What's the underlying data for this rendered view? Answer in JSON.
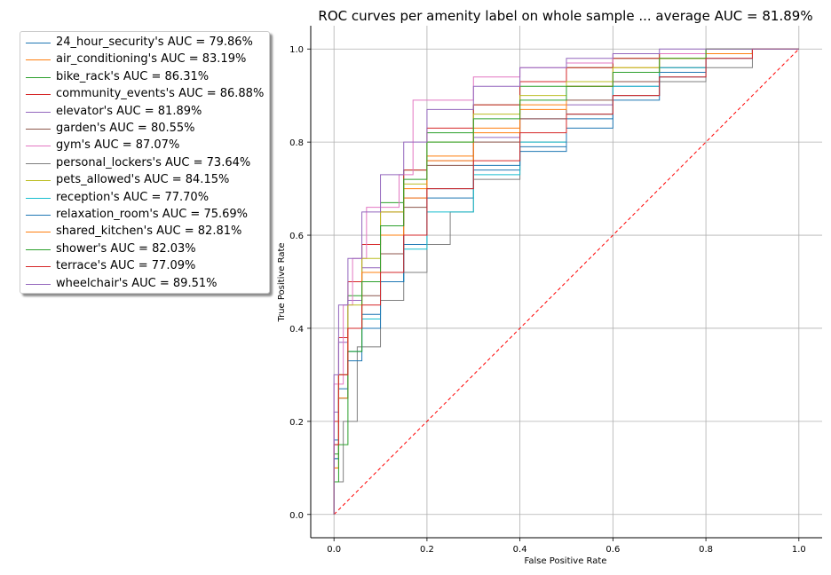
{
  "chart_data": {
    "type": "line",
    "title": "ROC curves per amenity label on whole sample ... average AUC = 81.89%",
    "xlabel": "False Positive Rate",
    "ylabel": "True Positive Rate",
    "xlim": [
      -0.05,
      1.05
    ],
    "ylim": [
      -0.05,
      1.05
    ],
    "xticks": [
      0.0,
      0.2,
      0.4,
      0.6,
      0.8,
      1.0
    ],
    "yticks": [
      0.0,
      0.2,
      0.4,
      0.6,
      0.8,
      1.0
    ],
    "xtick_labels": [
      "0.0",
      "0.2",
      "0.4",
      "0.6",
      "0.8",
      "1.0"
    ],
    "ytick_labels": [
      "0.0",
      "0.2",
      "0.4",
      "0.6",
      "0.8",
      "1.0"
    ],
    "grid": true,
    "legend_position": "outside-left",
    "diagonal": {
      "x": [
        0,
        1
      ],
      "y": [
        0,
        1
      ],
      "color": "#ff0000",
      "style": "dashed"
    },
    "series": [
      {
        "name": "24_hour_security's AUC = 79.86%",
        "color": "#1f77b4",
        "x": [
          0,
          0.01,
          0.03,
          0.06,
          0.1,
          0.15,
          0.2,
          0.3,
          0.4,
          0.5,
          0.6,
          0.7,
          0.8,
          0.9,
          1.0
        ],
        "y": [
          0,
          0.16,
          0.27,
          0.35,
          0.43,
          0.5,
          0.58,
          0.68,
          0.74,
          0.79,
          0.85,
          0.9,
          0.95,
          0.99,
          1.0
        ]
      },
      {
        "name": "air_conditioning's AUC = 83.19%",
        "color": "#ff7f0e",
        "x": [
          0,
          0.01,
          0.03,
          0.06,
          0.1,
          0.15,
          0.2,
          0.3,
          0.4,
          0.5,
          0.6,
          0.7,
          0.8,
          0.9,
          1.0
        ],
        "y": [
          0,
          0.1,
          0.25,
          0.4,
          0.52,
          0.62,
          0.7,
          0.77,
          0.83,
          0.88,
          0.92,
          0.96,
          0.98,
          1.0,
          1.0
        ]
      },
      {
        "name": "bike_rack's AUC = 86.31%",
        "color": "#2ca02c",
        "x": [
          0,
          0.01,
          0.03,
          0.06,
          0.1,
          0.15,
          0.2,
          0.3,
          0.4,
          0.5,
          0.6,
          0.7,
          0.8,
          0.9,
          1.0
        ],
        "y": [
          0,
          0.13,
          0.3,
          0.47,
          0.58,
          0.67,
          0.74,
          0.82,
          0.88,
          0.92,
          0.96,
          0.98,
          0.99,
          1.0,
          1.0
        ]
      },
      {
        "name": "community_events's AUC = 86.88%",
        "color": "#d62728",
        "x": [
          0,
          0.01,
          0.03,
          0.06,
          0.1,
          0.15,
          0.2,
          0.3,
          0.4,
          0.5,
          0.6,
          0.7,
          0.8,
          0.9,
          1.0
        ],
        "y": [
          0,
          0.2,
          0.38,
          0.5,
          0.58,
          0.65,
          0.74,
          0.83,
          0.88,
          0.93,
          0.96,
          0.98,
          0.99,
          1.0,
          1.0
        ]
      },
      {
        "name": "elevator's AUC = 81.89%",
        "color": "#9467bd",
        "x": [
          0,
          0.01,
          0.03,
          0.06,
          0.1,
          0.15,
          0.2,
          0.3,
          0.4,
          0.5,
          0.6,
          0.7,
          0.8,
          0.9,
          1.0
        ],
        "y": [
          0,
          0.22,
          0.37,
          0.46,
          0.53,
          0.62,
          0.68,
          0.76,
          0.81,
          0.85,
          0.88,
          0.92,
          0.96,
          0.99,
          1.0
        ]
      },
      {
        "name": "garden's AUC = 80.55%",
        "color": "#8c564b",
        "x": [
          0,
          0.01,
          0.03,
          0.06,
          0.1,
          0.15,
          0.2,
          0.3,
          0.4,
          0.5,
          0.6,
          0.7,
          0.8,
          0.9,
          1.0
        ],
        "y": [
          0,
          0.15,
          0.3,
          0.4,
          0.47,
          0.56,
          0.66,
          0.75,
          0.8,
          0.85,
          0.89,
          0.93,
          0.96,
          0.99,
          1.0
        ]
      },
      {
        "name": "gym's AUC = 87.07%",
        "color": "#e377c2",
        "x": [
          0,
          0.02,
          0.04,
          0.07,
          0.1,
          0.14,
          0.17,
          0.21,
          0.3,
          0.4,
          0.5,
          0.6,
          0.8,
          0.9,
          1.0
        ],
        "y": [
          0,
          0.28,
          0.45,
          0.55,
          0.66,
          0.66,
          0.73,
          0.89,
          0.89,
          0.94,
          0.96,
          0.97,
          0.99,
          1.0,
          1.0
        ]
      },
      {
        "name": "personal_lockers's AUC = 73.64%",
        "color": "#7f7f7f",
        "x": [
          0,
          0.02,
          0.05,
          0.1,
          0.15,
          0.2,
          0.25,
          0.3,
          0.4,
          0.5,
          0.6,
          0.7,
          0.8,
          0.9,
          1.0
        ],
        "y": [
          0,
          0.07,
          0.2,
          0.36,
          0.46,
          0.52,
          0.58,
          0.65,
          0.72,
          0.8,
          0.86,
          0.9,
          0.93,
          0.96,
          1.0
        ]
      },
      {
        "name": "pets_allowed's AUC = 84.15%",
        "color": "#bcbd22",
        "x": [
          0,
          0.01,
          0.03,
          0.06,
          0.1,
          0.15,
          0.2,
          0.3,
          0.4,
          0.5,
          0.6,
          0.7,
          0.8,
          0.9,
          1.0
        ],
        "y": [
          0,
          0.12,
          0.3,
          0.45,
          0.55,
          0.65,
          0.71,
          0.8,
          0.86,
          0.9,
          0.93,
          0.96,
          0.98,
          1.0,
          1.0
        ]
      },
      {
        "name": "reception's AUC = 77.70%",
        "color": "#17becf",
        "x": [
          0,
          0.01,
          0.03,
          0.06,
          0.1,
          0.15,
          0.2,
          0.3,
          0.4,
          0.5,
          0.6,
          0.7,
          0.8,
          0.9,
          1.0
        ],
        "y": [
          0,
          0.12,
          0.25,
          0.35,
          0.42,
          0.5,
          0.57,
          0.65,
          0.73,
          0.8,
          0.86,
          0.92,
          0.96,
          0.99,
          1.0
        ]
      },
      {
        "name": "relaxation_room's AUC = 75.69%",
        "color": "#1f77b4",
        "x": [
          0,
          0.01,
          0.03,
          0.06,
          0.1,
          0.15,
          0.2,
          0.3,
          0.4,
          0.5,
          0.6,
          0.7,
          0.8,
          0.9,
          1.0
        ],
        "y": [
          0,
          0.12,
          0.25,
          0.33,
          0.4,
          0.5,
          0.6,
          0.7,
          0.75,
          0.78,
          0.83,
          0.89,
          0.94,
          0.98,
          1.0
        ]
      },
      {
        "name": "shared_kitchen's AUC = 82.81%",
        "color": "#ff7f0e",
        "x": [
          0,
          0.01,
          0.03,
          0.06,
          0.1,
          0.15,
          0.2,
          0.3,
          0.4,
          0.5,
          0.6,
          0.7,
          0.8,
          0.9,
          1.0
        ],
        "y": [
          0,
          0.1,
          0.25,
          0.4,
          0.52,
          0.6,
          0.68,
          0.76,
          0.82,
          0.87,
          0.92,
          0.95,
          0.98,
          0.99,
          1.0
        ]
      },
      {
        "name": "shower's AUC = 82.03%",
        "color": "#2ca02c",
        "x": [
          0,
          0.01,
          0.03,
          0.06,
          0.1,
          0.15,
          0.2,
          0.3,
          0.4,
          0.5,
          0.6,
          0.7,
          0.8,
          0.9,
          1.0
        ],
        "y": [
          0,
          0.07,
          0.15,
          0.35,
          0.5,
          0.62,
          0.72,
          0.8,
          0.85,
          0.89,
          0.92,
          0.95,
          0.98,
          1.0,
          1.0
        ]
      },
      {
        "name": "terrace's AUC = 77.09%",
        "color": "#d62728",
        "x": [
          0,
          0.01,
          0.03,
          0.06,
          0.1,
          0.15,
          0.2,
          0.3,
          0.4,
          0.5,
          0.6,
          0.7,
          0.8,
          0.9,
          1.0
        ],
        "y": [
          0,
          0.15,
          0.3,
          0.4,
          0.45,
          0.52,
          0.6,
          0.7,
          0.76,
          0.82,
          0.86,
          0.9,
          0.94,
          0.98,
          1.0
        ]
      },
      {
        "name": "wheelchair's AUC = 89.51%",
        "color": "#9467bd",
        "x": [
          0,
          0.01,
          0.03,
          0.06,
          0.1,
          0.15,
          0.2,
          0.3,
          0.4,
          0.5,
          0.6,
          0.7,
          0.8,
          0.9,
          1.0
        ],
        "y": [
          0,
          0.3,
          0.45,
          0.55,
          0.65,
          0.73,
          0.8,
          0.87,
          0.92,
          0.96,
          0.98,
          0.99,
          1.0,
          1.0,
          1.0
        ]
      }
    ]
  }
}
